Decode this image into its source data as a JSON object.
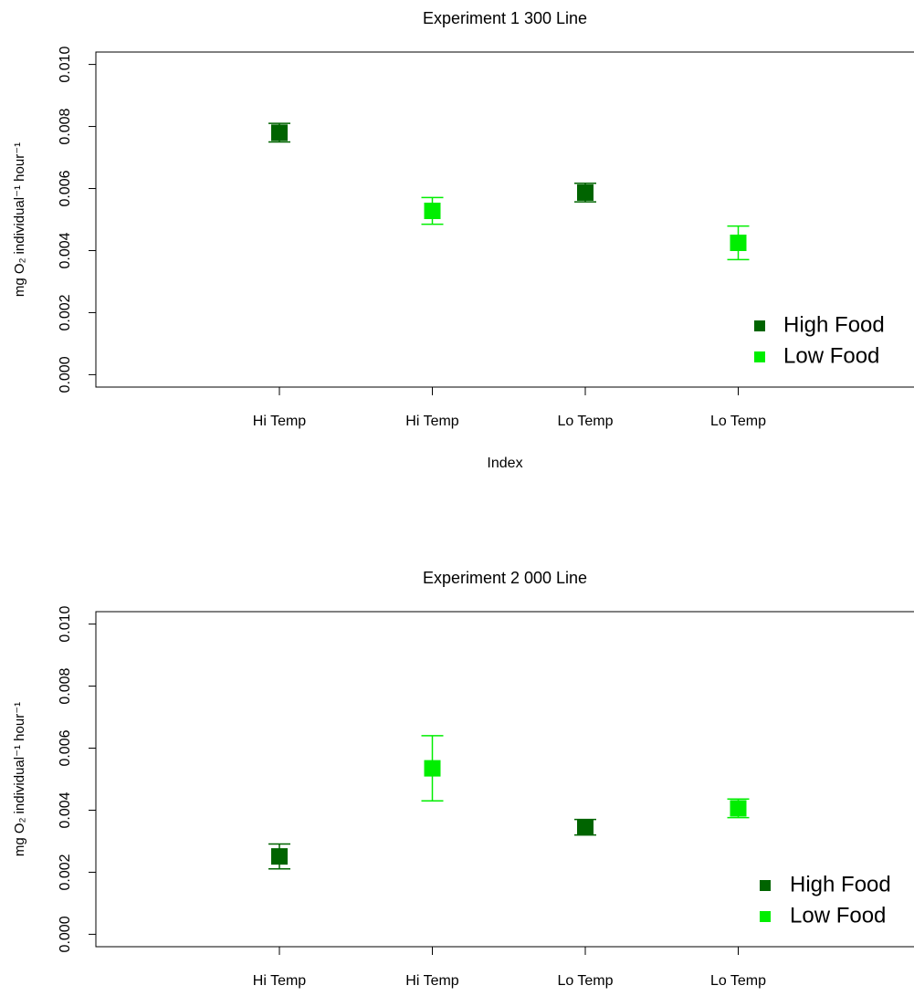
{
  "chart_data": [
    {
      "type": "scatter",
      "title": "Experiment 1 300 Line",
      "x_label": "Index",
      "y_label": "mg O₂ individual⁻¹ hour⁻¹",
      "categories": [
        "Hi Temp",
        "Hi Temp",
        "Lo Temp",
        "Lo Temp"
      ],
      "series": [
        {
          "name": "High Food",
          "color": "#006400",
          "values": [
            0.0078,
            null,
            0.00587,
            null
          ],
          "errors": [
            0.0003,
            null,
            0.0003,
            null
          ]
        },
        {
          "name": "Low Food",
          "color": "#00ee00",
          "values": [
            null,
            0.00528,
            null,
            0.00425
          ],
          "errors": [
            null,
            0.00043,
            null,
            0.00054
          ]
        }
      ],
      "ylim": [
        -0.0004,
        0.0104
      ],
      "yticks": [
        {
          "value": 0,
          "label": "0.000"
        },
        0.002,
        0.004,
        0.006,
        0.008,
        {
          "value": 0.01,
          "label": "0.010"
        }
      ],
      "legend": "bottom right"
    },
    {
      "type": "scatter",
      "title": "Experiment 2 000 Line",
      "y_label": "mg O₂ individual⁻¹ hour⁻¹",
      "categories": [
        "Hi Temp",
        "Hi Temp",
        "Lo Temp",
        "Lo Temp"
      ],
      "series": [
        {
          "name": "High Food",
          "color": "#006400",
          "values": [
            0.00251,
            null,
            0.00345,
            null
          ],
          "errors": [
            0.0004,
            null,
            0.00025,
            null
          ]
        },
        {
          "name": "Low Food",
          "color": "#00ee00",
          "values": [
            null,
            0.00535,
            null,
            0.00406
          ],
          "errors": [
            null,
            0.00105,
            null,
            0.0003
          ]
        }
      ],
      "ylim": [
        -0.0004,
        0.0104
      ],
      "yticks": [
        {
          "value": 0,
          "label": "0.000"
        },
        0.002,
        0.004,
        0.006,
        0.008,
        {
          "value": 0.01,
          "label": "0.010"
        }
      ],
      "legend": "bottom right"
    }
  ]
}
